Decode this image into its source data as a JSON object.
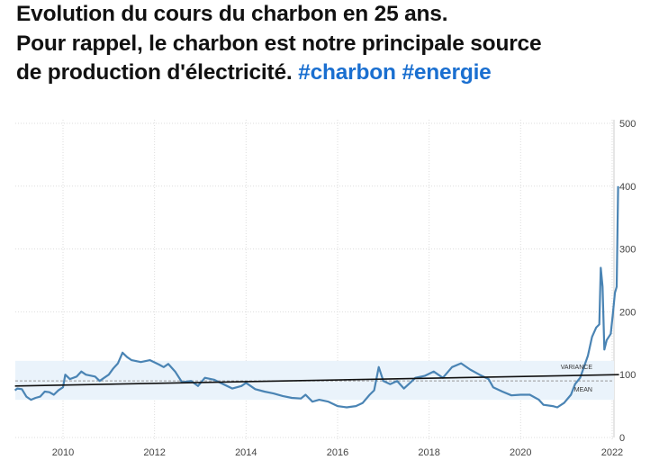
{
  "post": {
    "line1": "Evolution du cours du charbon en 25 ans.",
    "line2": "Pour rappel, le charbon est notre principale source",
    "line3": "de production d'électricité.",
    "hashtags": [
      "#charbon",
      "#energie"
    ],
    "hashtag_color": "#1a6fd0"
  },
  "chart_data": {
    "type": "line",
    "title": "",
    "xlabel": "",
    "ylabel": "",
    "xlim": [
      2008.95,
      2022.2
    ],
    "ylim": [
      0,
      500
    ],
    "x_ticks": [
      "2010",
      "2012",
      "2014",
      "2016",
      "2018",
      "2020",
      "2022"
    ],
    "y_ticks": [
      "0",
      "100",
      "200",
      "300",
      "400",
      "500"
    ],
    "y_axis_side": "right",
    "grid": true,
    "line_color": "#4a84b4",
    "annotations": {
      "variance_label": "VARIANCE",
      "mean_label": "MEAN"
    },
    "mean": 90,
    "variance_band": [
      60,
      122
    ],
    "trend_line": [
      [
        2008.95,
        82
      ],
      [
        2022.15,
        100
      ]
    ],
    "series": [
      {
        "x": [
          2008.95,
          2009.0,
          2009.1,
          2009.2,
          2009.3,
          2009.4,
          2009.5,
          2009.6,
          2009.7,
          2009.8,
          2009.9,
          2010.0,
          2010.05,
          2010.15,
          2010.3,
          2010.4,
          2010.5,
          2010.7,
          2010.8,
          2010.9,
          2011.0,
          2011.1,
          2011.2,
          2011.3,
          2011.4,
          2011.5,
          2011.7,
          2011.9,
          2012.1,
          2012.2,
          2012.3,
          2012.45,
          2012.6,
          2012.8,
          2012.95,
          2013.1,
          2013.3,
          2013.5,
          2013.7,
          2013.9,
          2014.0,
          2014.2,
          2014.4,
          2014.6,
          2014.8,
          2015.0,
          2015.2,
          2015.3,
          2015.45,
          2015.6,
          2015.8,
          2016.0,
          2016.2,
          2016.4,
          2016.55,
          2016.7,
          2016.8,
          2016.9,
          2017.0,
          2017.15,
          2017.3,
          2017.45,
          2017.6,
          2017.7,
          2017.9,
          2018.1,
          2018.3,
          2018.5,
          2018.7,
          2018.9,
          2019.1,
          2019.3,
          2019.4,
          2019.6,
          2019.8,
          2020.0,
          2020.2,
          2020.4,
          2020.5,
          2020.7,
          2020.8,
          2020.95,
          2021.1,
          2021.19,
          2021.3,
          2021.47,
          2021.56,
          2021.65,
          2021.72,
          2021.75,
          2021.79,
          2021.83,
          2021.88,
          2021.97,
          2022.02,
          2022.06,
          2022.1,
          2022.13
        ],
        "values": [
          75,
          78,
          77,
          65,
          60,
          63,
          65,
          73,
          72,
          68,
          75,
          80,
          100,
          93,
          97,
          105,
          100,
          97,
          90,
          95,
          100,
          110,
          118,
          135,
          128,
          123,
          120,
          123,
          116,
          112,
          117,
          105,
          88,
          90,
          82,
          95,
          92,
          85,
          78,
          82,
          87,
          77,
          73,
          70,
          66,
          63,
          62,
          68,
          57,
          60,
          57,
          50,
          48,
          50,
          55,
          68,
          75,
          112,
          90,
          85,
          90,
          78,
          88,
          95,
          98,
          105,
          95,
          112,
          118,
          108,
          100,
          93,
          80,
          73,
          67,
          68,
          68,
          60,
          52,
          50,
          48,
          55,
          68,
          85,
          95,
          130,
          160,
          175,
          180,
          270,
          240,
          140,
          155,
          165,
          200,
          230,
          240,
          400
        ]
      }
    ]
  }
}
